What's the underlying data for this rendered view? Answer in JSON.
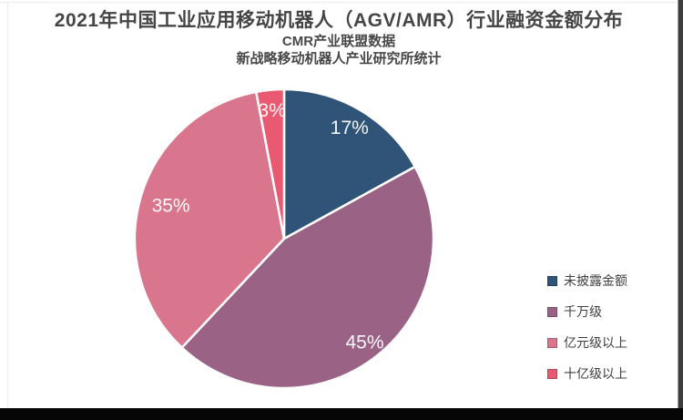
{
  "header": {
    "title": "2021年中国工业应用移动机器人（AGV/AMR）行业融资金额分布",
    "subtitle1": "CMR产业联盟数据",
    "subtitle2": "新战略移动机器人产业研究所统计"
  },
  "chart_data": {
    "type": "pie",
    "title": "2021年中国工业应用移动机器人（AGV/AMR）行业融资金额分布",
    "subtitles": [
      "CMR产业联盟数据",
      "新战略移动机器人产业研究所统计"
    ],
    "unit": "percent",
    "slices": [
      {
        "label": "未披露金额",
        "value": 17,
        "display": "17%",
        "color": "#2F5478"
      },
      {
        "label": "千万级",
        "value": 45,
        "display": "45%",
        "color": "#9A6386"
      },
      {
        "label": "亿元级以上",
        "value": 35,
        "display": "35%",
        "color": "#D9758C"
      },
      {
        "label": "十亿级以上",
        "value": 3,
        "display": "3%",
        "color": "#E95A72"
      }
    ],
    "start_angle_deg": 0,
    "direction": "clockwise",
    "legend_position": "right",
    "label_radius_fractions": [
      0.86,
      0.88,
      0.79,
      0.86
    ],
    "label_color": "#ffffff",
    "slice_separator_color": "#ffffff"
  }
}
